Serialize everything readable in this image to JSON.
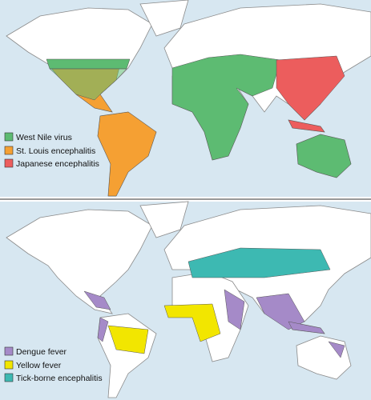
{
  "maps": [
    {
      "legend": [
        {
          "label": "West Nile virus",
          "color": "#5dbb72"
        },
        {
          "label": "St. Louis encephalitis",
          "color": "#f5a033"
        },
        {
          "label": "Japanese encephalitis",
          "color": "#ec5d5d"
        }
      ]
    },
    {
      "legend": [
        {
          "label": "Dengue fever",
          "color": "#a58ac8"
        },
        {
          "label": "Yellow fever",
          "color": "#f2e600"
        },
        {
          "label": "Tick-borne encephalitis",
          "color": "#3db9b2"
        }
      ]
    }
  ]
}
